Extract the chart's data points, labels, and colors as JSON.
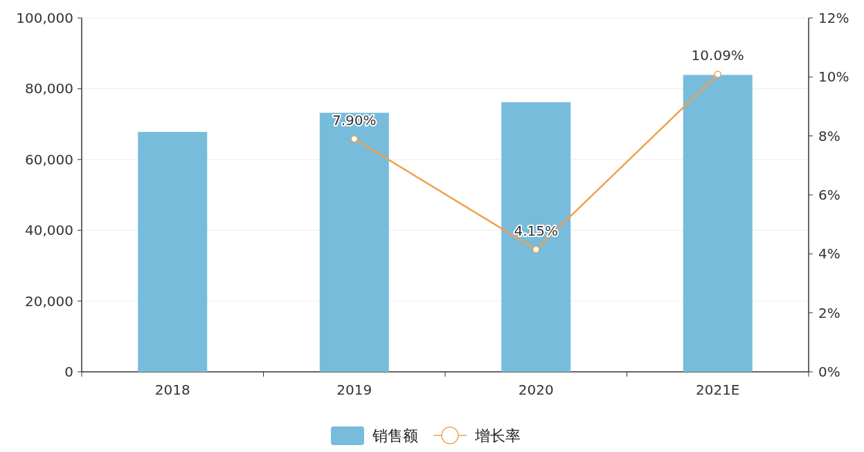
{
  "chart_data": {
    "type": "bar",
    "categories": [
      "2018",
      "2019",
      "2020",
      "2021E"
    ],
    "series": [
      {
        "name": "销售额",
        "color": "#78bcdc",
        "values": [
          67800,
          73200,
          76200,
          83900
        ]
      },
      {
        "name": "增长率",
        "type": "line",
        "axis": "y2",
        "color": "#f0a050",
        "values": [
          null,
          7.9,
          4.15,
          10.09
        ],
        "value_labels": [
          null,
          "7.90%",
          "4.15%",
          "10.09%"
        ]
      }
    ],
    "ylim": [
      0,
      100000
    ],
    "yticks": [
      {
        "value": 0,
        "label": "0"
      },
      {
        "value": 20000,
        "label": "20,000"
      },
      {
        "value": 40000,
        "label": "40,000"
      },
      {
        "value": 60000,
        "label": "60,000"
      },
      {
        "value": 80000,
        "label": "80,000"
      },
      {
        "value": 100000,
        "label": "100,000"
      }
    ],
    "y2lim": [
      0,
      12
    ],
    "y2ticks": [
      {
        "value": 0,
        "label": "0%"
      },
      {
        "value": 2,
        "label": "2%"
      },
      {
        "value": 4,
        "label": "4%"
      },
      {
        "value": 6,
        "label": "6%"
      },
      {
        "value": 8,
        "label": "8%"
      },
      {
        "value": 10,
        "label": "10%"
      },
      {
        "value": 12,
        "label": "12%"
      }
    ],
    "grid": "y",
    "legend": "bottom",
    "marker": "circle",
    "line_style": "solid"
  }
}
